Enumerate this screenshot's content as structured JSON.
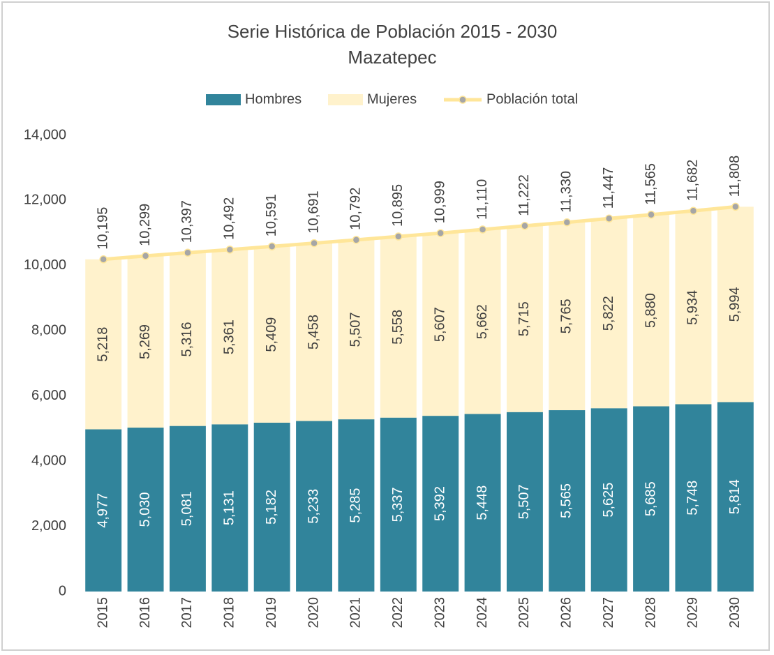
{
  "chart_data": {
    "type": "bar",
    "stacked": true,
    "title": "Serie Histórica de Población 2015 - 2030",
    "subtitle": "Mazatepec",
    "categories": [
      "2015",
      "2016",
      "2017",
      "2018",
      "2019",
      "2020",
      "2021",
      "2022",
      "2023",
      "2024",
      "2025",
      "2026",
      "2027",
      "2028",
      "2029",
      "2030"
    ],
    "series": [
      {
        "name": "Hombres",
        "color": "#31849b",
        "type": "bar",
        "values": [
          4977,
          5030,
          5081,
          5131,
          5182,
          5233,
          5285,
          5337,
          5392,
          5448,
          5507,
          5565,
          5625,
          5685,
          5748,
          5814
        ],
        "value_labels": [
          "4,977",
          "5,030",
          "5,081",
          "5,131",
          "5,182",
          "5,233",
          "5,285",
          "5,337",
          "5,392",
          "5,448",
          "5,507",
          "5,565",
          "5,625",
          "5,685",
          "5,748",
          "5,814"
        ]
      },
      {
        "name": "Mujeres",
        "color": "#fff2cc",
        "type": "bar",
        "values": [
          5218,
          5269,
          5316,
          5361,
          5409,
          5458,
          5507,
          5558,
          5607,
          5662,
          5715,
          5765,
          5822,
          5880,
          5934,
          5994
        ],
        "value_labels": [
          "5,218",
          "5,269",
          "5,316",
          "5,361",
          "5,409",
          "5,458",
          "5,507",
          "5,558",
          "5,607",
          "5,662",
          "5,715",
          "5,765",
          "5,822",
          "5,880",
          "5,934",
          "5,994"
        ]
      },
      {
        "name": "Población total",
        "color": "#ffe699",
        "marker_color": "#a6a6a6",
        "type": "line",
        "values": [
          10195,
          10299,
          10397,
          10492,
          10591,
          10691,
          10792,
          10895,
          10999,
          11110,
          11222,
          11330,
          11447,
          11565,
          11682,
          11808
        ],
        "value_labels": [
          "10,195",
          "10,299",
          "10,397",
          "10,492",
          "10,591",
          "10,691",
          "10,792",
          "10,895",
          "10,999",
          "11,110",
          "11,222",
          "11,330",
          "11,447",
          "11,565",
          "11,682",
          "11,808"
        ]
      }
    ],
    "ylim": [
      0,
      14000
    ],
    "yticks": [
      0,
      {
        "value": 2000,
        "label": "2,000"
      },
      {
        "value": 4000,
        "label": "4,000"
      },
      {
        "value": 6000,
        "label": "6,000"
      },
      {
        "value": 8000,
        "label": "8,000"
      },
      {
        "value": 10000,
        "label": "10,000"
      },
      {
        "value": 12000,
        "label": "12,000"
      },
      {
        "value": 14000,
        "label": "14,000"
      }
    ],
    "grid": false,
    "legend": "top"
  }
}
